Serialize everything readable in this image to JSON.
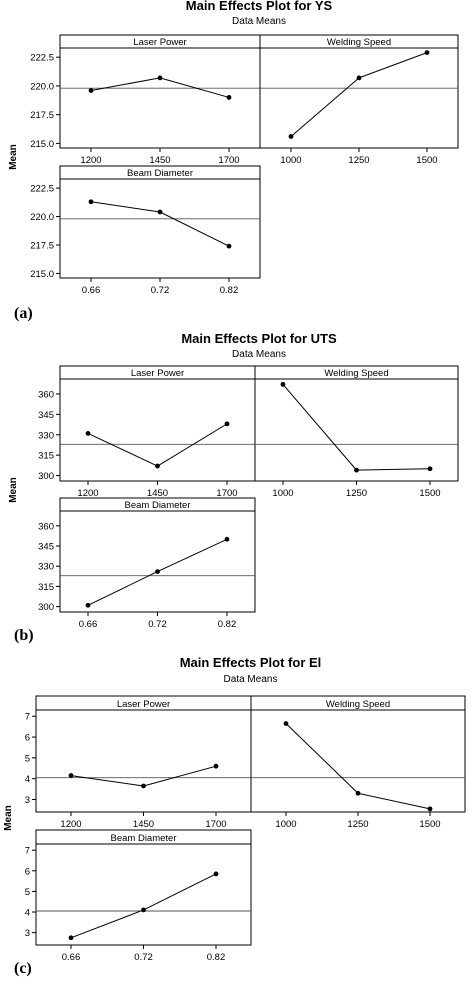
{
  "chart_data": [
    {
      "type": "line",
      "panel_label": "(a)",
      "title": "Main Effects Plot for YS",
      "subtitle": "Data Means",
      "ylabel": "Mean",
      "ylim": [
        214.6,
        223.3
      ],
      "yticks": [
        215.0,
        217.5,
        220.0,
        222.5
      ],
      "ytick_labels": [
        "215.0",
        "217.5",
        "220.0",
        "222.5"
      ],
      "mean_line": 219.8,
      "factors": [
        {
          "name": "Laser Power",
          "categories": [
            "1200",
            "1450",
            "1700"
          ],
          "values": [
            219.6,
            220.7,
            219.0
          ]
        },
        {
          "name": "Welding Speed",
          "categories": [
            "1000",
            "1250",
            "1500"
          ],
          "values": [
            215.6,
            220.7,
            222.9
          ]
        },
        {
          "name": "Beam Diameter",
          "categories": [
            "0.66",
            "0.72",
            "0.82"
          ],
          "values": [
            221.3,
            220.4,
            217.4
          ]
        }
      ]
    },
    {
      "type": "line",
      "panel_label": "(b)",
      "title": "Main Effects Plot for UTS",
      "subtitle": "Data Means",
      "ylabel": "Mean",
      "ylim": [
        296,
        371
      ],
      "yticks": [
        300,
        315,
        330,
        345,
        360
      ],
      "ytick_labels": [
        "300",
        "315",
        "330",
        "345",
        "360"
      ],
      "mean_line": 323,
      "factors": [
        {
          "name": "Laser Power",
          "categories": [
            "1200",
            "1450",
            "1700"
          ],
          "values": [
            331,
            307,
            338
          ]
        },
        {
          "name": "Welding Speed",
          "categories": [
            "1000",
            "1250",
            "1500"
          ],
          "values": [
            367,
            304,
            305
          ]
        },
        {
          "name": "Beam Diameter",
          "categories": [
            "0.66",
            "0.72",
            "0.82"
          ],
          "values": [
            301,
            326,
            350
          ]
        }
      ]
    },
    {
      "type": "line",
      "panel_label": "(c)",
      "title": "Main Effects Plot for El",
      "subtitle": "Data Means",
      "ylabel": "Mean",
      "ylim": [
        2.4,
        7.3
      ],
      "yticks": [
        3,
        4,
        5,
        6,
        7
      ],
      "ytick_labels": [
        "3",
        "4",
        "5",
        "6",
        "7"
      ],
      "mean_line": 4.05,
      "factors": [
        {
          "name": "Laser Power",
          "categories": [
            "1200",
            "1450",
            "1700"
          ],
          "values": [
            4.15,
            3.65,
            4.6
          ]
        },
        {
          "name": "Welding Speed",
          "categories": [
            "1000",
            "1250",
            "1500"
          ],
          "values": [
            6.65,
            3.3,
            2.55
          ]
        },
        {
          "name": "Beam Diameter",
          "categories": [
            "0.66",
            "0.72",
            "0.82"
          ],
          "values": [
            2.75,
            4.1,
            5.85
          ]
        }
      ]
    }
  ]
}
